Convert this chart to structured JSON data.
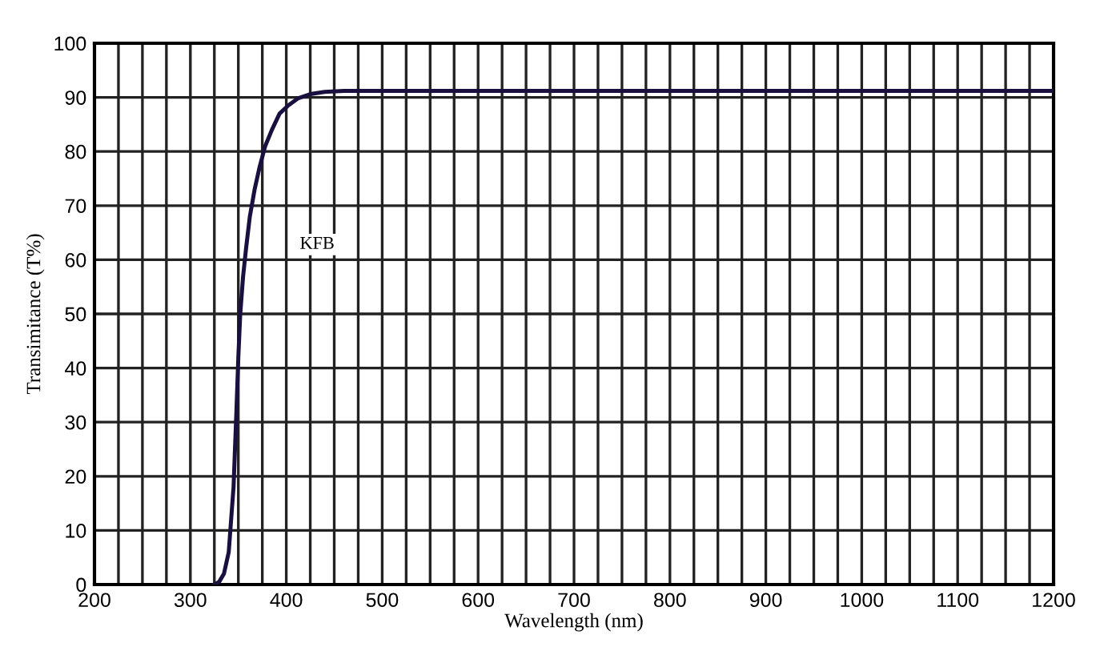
{
  "chart_data": {
    "type": "line",
    "xlabel": "Wavelength (nm)",
    "ylabel": "Transimitance (T%)",
    "series": [
      {
        "name": "KFB",
        "color": "#1a1040",
        "x": [
          325,
          330,
          335,
          340,
          345,
          348,
          350,
          352,
          355,
          358,
          362,
          367,
          372,
          378,
          385,
          393,
          402,
          412,
          425,
          440,
          460,
          500,
          1200
        ],
        "values": [
          0,
          0.5,
          2,
          6,
          18,
          32,
          42,
          50,
          57,
          62,
          68,
          73,
          77,
          81,
          84,
          87,
          88.5,
          89.8,
          90.6,
          91,
          91.2,
          91.2,
          91.2
        ]
      }
    ],
    "xlim": [
      200,
      1200
    ],
    "xticks": [
      200,
      {
        "value": 225,
        "label": null
      },
      {
        "value": 250,
        "label": null
      },
      {
        "value": 275,
        "label": null
      },
      300,
      {
        "value": 325,
        "label": null
      },
      {
        "value": 350,
        "label": null
      },
      {
        "value": 375,
        "label": null
      },
      400,
      {
        "value": 425,
        "label": null
      },
      {
        "value": 450,
        "label": null
      },
      {
        "value": 475,
        "label": null
      },
      500,
      {
        "value": 525,
        "label": null
      },
      {
        "value": 550,
        "label": null
      },
      {
        "value": 575,
        "label": null
      },
      600,
      {
        "value": 625,
        "label": null
      },
      {
        "value": 650,
        "label": null
      },
      {
        "value": 675,
        "label": null
      },
      700,
      {
        "value": 725,
        "label": null
      },
      {
        "value": 750,
        "label": null
      },
      {
        "value": 775,
        "label": null
      },
      800,
      {
        "value": 825,
        "label": null
      },
      {
        "value": 850,
        "label": null
      },
      {
        "value": 875,
        "label": null
      },
      900,
      {
        "value": 925,
        "label": null
      },
      {
        "value": 950,
        "label": null
      },
      {
        "value": 975,
        "label": null
      },
      1000,
      {
        "value": 1025,
        "label": null
      },
      {
        "value": 1050,
        "label": null
      },
      {
        "value": 1075,
        "label": null
      },
      1100,
      {
        "value": 1125,
        "label": null
      },
      {
        "value": 1150,
        "label": null
      },
      {
        "value": 1175,
        "label": null
      },
      1200
    ],
    "ylim": [
      0,
      100
    ],
    "yticks": [
      0,
      10,
      20,
      30,
      40,
      50,
      60,
      70,
      80,
      90,
      100
    ],
    "grid": true,
    "line_style": "solid",
    "marker": "none"
  }
}
